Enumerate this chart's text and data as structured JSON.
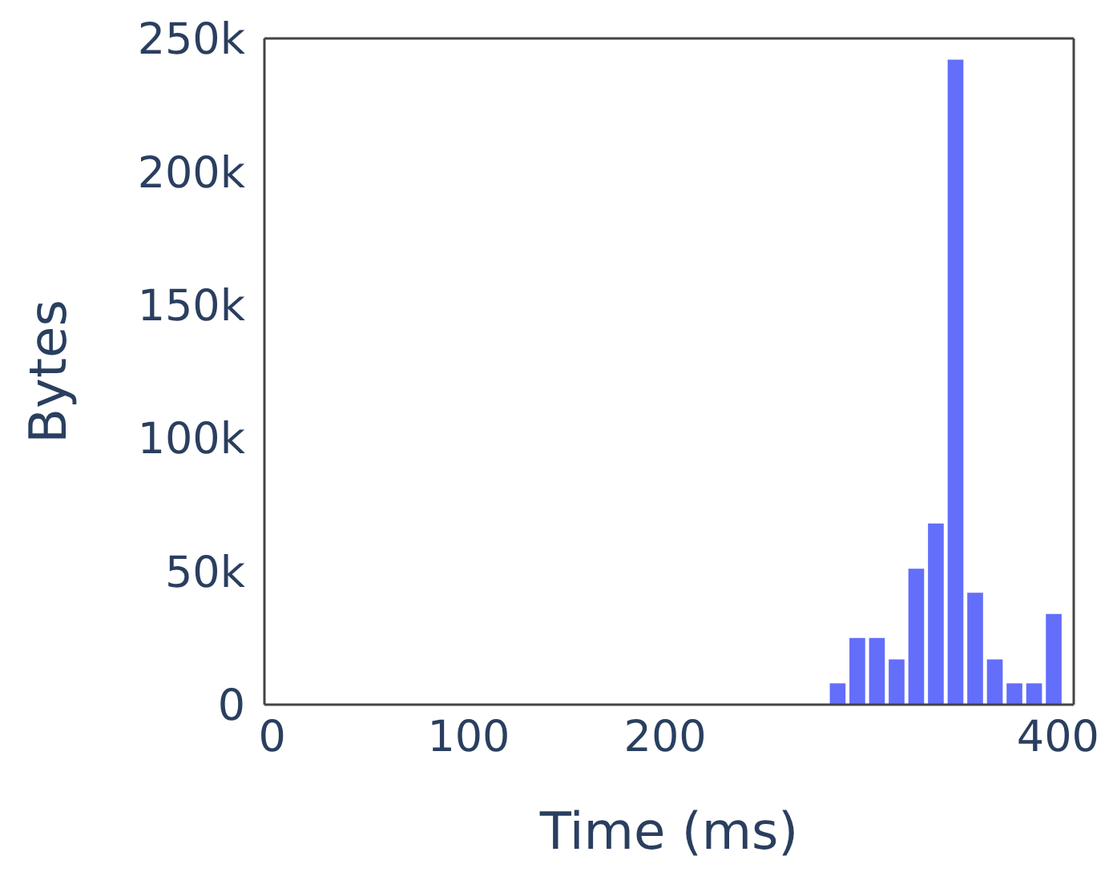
{
  "chart_data": {
    "type": "histogram",
    "xlabel": "Time (ms)",
    "ylabel": "Bytes",
    "color": "#636efa",
    "bins": [
      283,
      293,
      303,
      313,
      323,
      333,
      343,
      353,
      363,
      373,
      383,
      393,
      403
    ],
    "values": [
      8000,
      25000,
      25000,
      17000,
      51000,
      68000,
      242000,
      42000,
      17000,
      8000,
      8000,
      34000
    ],
    "xlim": [
      -4,
      408
    ],
    "xticks": [
      0,
      100,
      200,
      400
    ],
    "ylim": [
      0,
      250000
    ],
    "yticks": [
      0,
      {
        "value": 50000,
        "label": "50k"
      },
      {
        "value": 100000,
        "label": "100k"
      },
      {
        "value": 150000,
        "label": "150k"
      },
      {
        "value": 200000,
        "label": "200k"
      },
      {
        "value": 250000,
        "label": "250k"
      }
    ],
    "grid": false,
    "legend": false
  }
}
